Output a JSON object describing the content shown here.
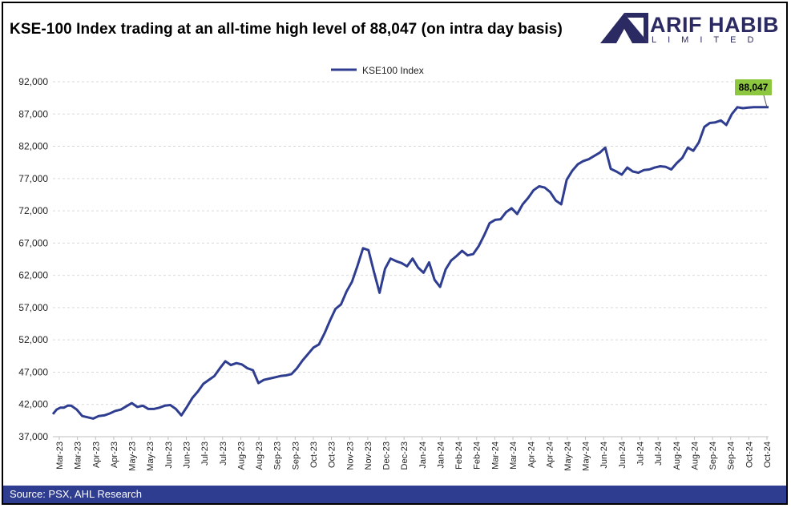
{
  "header": {
    "title": "KSE-100 Index trading at an all-time high level of 88,047 (on intra day basis)",
    "logo_main": "ARIF HABIB",
    "logo_sub": "LIMITED"
  },
  "footer": {
    "source": "Source: PSX, AHL Research"
  },
  "colors": {
    "line": "#2e3d8f",
    "callout": "#8dc63f",
    "footer_bg": "#2e3d8f",
    "logo": "#2b2a62",
    "grid": "#d9d9d9"
  },
  "chart_data": {
    "type": "line",
    "title": "",
    "legend": "KSE100 Index",
    "legend_position": "top",
    "callout_label": "88,047",
    "callout_value": 88047,
    "ylim": [
      37000,
      92000
    ],
    "yticks": [
      "37,000",
      "42,000",
      "47,000",
      "52,000",
      "57,000",
      "62,000",
      "67,000",
      "72,000",
      "77,000",
      "82,000",
      "87,000",
      "92,000"
    ],
    "ytick_values": [
      37000,
      42000,
      47000,
      52000,
      57000,
      62000,
      67000,
      72000,
      77000,
      82000,
      87000,
      92000
    ],
    "xticks": [
      "Mar-23",
      "Mar-23",
      "Apr-23",
      "Apr-23",
      "May-23",
      "May-23",
      "Jun-23",
      "Jun-23",
      "Jul-23",
      "Jul-23",
      "Aug-23",
      "Aug-23",
      "Sep-23",
      "Sep-23",
      "Oct-23",
      "Oct-23",
      "Nov-23",
      "Nov-23",
      "Dec-23",
      "Dec-23",
      "Jan-24",
      "Jan-24",
      "Feb-24",
      "Feb-24",
      "Mar-24",
      "Mar-24",
      "Apr-24",
      "Apr-24",
      "May-24",
      "May-24",
      "Jun-24",
      "Jun-24",
      "Jul-24",
      "Jul-24",
      "Aug-24",
      "Aug-24",
      "Sep-24",
      "Sep-24",
      "Oct-24",
      "Oct-24"
    ],
    "grid": true,
    "series": [
      {
        "name": "KSE100 Index",
        "x": [
          0,
          0.2,
          0.4,
          0.6,
          0.8,
          1.0,
          1.3,
          1.6,
          1.9,
          2.2,
          2.5,
          2.8,
          3.1,
          3.4,
          3.7,
          4.0,
          4.3,
          4.6,
          4.9,
          5.2,
          5.5,
          5.8,
          6.1,
          6.4,
          6.7,
          7.0,
          7.3,
          7.6,
          7.9,
          8.2,
          8.5,
          8.8,
          9.1,
          9.4,
          9.7,
          10.0,
          10.3,
          10.6,
          10.9,
          11.2,
          11.5,
          11.8,
          12.1,
          12.4,
          12.7,
          13.0,
          13.3,
          13.6,
          13.9,
          14.2,
          14.5,
          14.8,
          15.1,
          15.4,
          15.7,
          16.0,
          16.3,
          16.6,
          16.9,
          17.2,
          17.5,
          17.8,
          18.1,
          18.4,
          18.7,
          19.0,
          19.3,
          19.6,
          19.9,
          20.2,
          20.5,
          20.8,
          21.1,
          21.4,
          21.7,
          22.0,
          22.3,
          22.6,
          22.9,
          23.2,
          23.5,
          23.8,
          24.1,
          24.4,
          24.7,
          25.0,
          25.3,
          25.6,
          25.9,
          26.2,
          26.5,
          26.8,
          27.1,
          27.4,
          27.7,
          28.0,
          28.3,
          28.6,
          28.9,
          29.2,
          29.5,
          29.8,
          30.1,
          30.4,
          30.7,
          31.0,
          31.3,
          31.6,
          31.9,
          32.2,
          32.5,
          32.8,
          33.1,
          33.4,
          33.7,
          34.0,
          34.3,
          34.6,
          34.9,
          35.2,
          35.5,
          35.8,
          36.1,
          36.4,
          36.7,
          37.0,
          37.3,
          37.6,
          37.9,
          38.2,
          38.5,
          38.8,
          39.0
        ],
        "values": [
          40500,
          41200,
          41500,
          41500,
          41800,
          41800,
          41200,
          40200,
          40000,
          39800,
          40200,
          40300,
          40600,
          41000,
          41200,
          41700,
          42200,
          41600,
          41800,
          41300,
          41300,
          41500,
          41800,
          41900,
          41300,
          40300,
          41600,
          43000,
          44000,
          45200,
          45800,
          46400,
          47600,
          48700,
          48100,
          48400,
          48200,
          47600,
          47300,
          45300,
          45800,
          46000,
          46200,
          46400,
          46500,
          46700,
          47600,
          48800,
          49800,
          50800,
          51300,
          53000,
          55000,
          56800,
          57500,
          59500,
          61000,
          63500,
          66200,
          65900,
          62500,
          59300,
          63000,
          64600,
          64200,
          63900,
          63400,
          64600,
          63200,
          62400,
          64000,
          61300,
          60200,
          62900,
          64300,
          65000,
          65800,
          65100,
          65300,
          66500,
          68200,
          70100,
          70600,
          70700,
          71800,
          72400,
          71500,
          73000,
          74000,
          75200,
          75800,
          75600,
          74900,
          73600,
          73000,
          76800,
          78200,
          79200,
          79700,
          80000,
          80500,
          81000,
          81800,
          78500,
          78100,
          77600,
          78700,
          78100,
          77900,
          78300,
          78400,
          78700,
          78900,
          78800,
          78400,
          79400,
          80200,
          81800,
          81300,
          82600,
          85000,
          85600,
          85700,
          86000,
          85300,
          87000,
          88047,
          87900,
          88000,
          88047,
          88047,
          88047,
          88047
        ]
      }
    ]
  }
}
